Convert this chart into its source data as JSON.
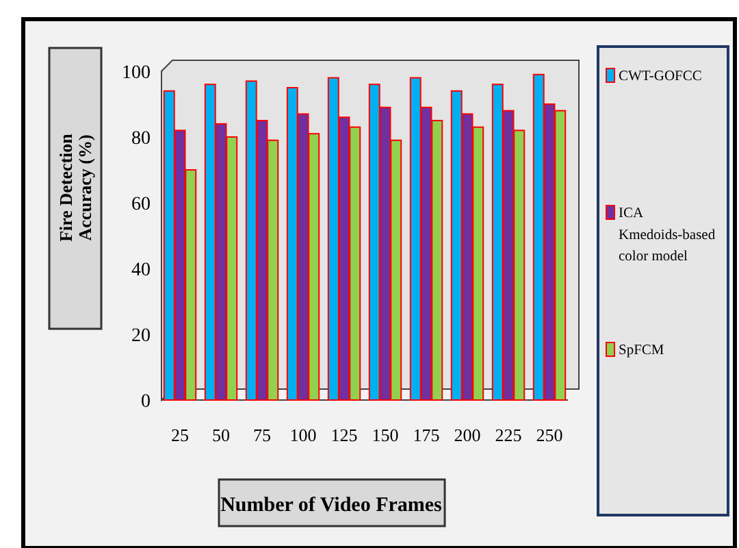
{
  "chart_data": {
    "type": "bar",
    "xlabel": "Number of Video Frames",
    "ylabel": "Fire Detection Accuracy (%)",
    "categories": [
      "25",
      "50",
      "75",
      "100",
      "125",
      "150",
      "175",
      "200",
      "225",
      "250"
    ],
    "series": [
      {
        "name": "CWT-GOFCC",
        "color": "#00b0f0",
        "values": [
          94,
          96,
          97,
          95,
          98,
          96,
          98,
          94,
          96,
          99
        ]
      },
      {
        "name": "ICA Kmedoids-based color model",
        "color": "#7030a0",
        "values": [
          82,
          84,
          85,
          87,
          86,
          89,
          89,
          87,
          88,
          90
        ]
      },
      {
        "name": "SpFCM",
        "color": "#92d050",
        "values": [
          70,
          80,
          79,
          81,
          83,
          79,
          85,
          83,
          82,
          88
        ]
      }
    ],
    "ylim": [
      0,
      100
    ],
    "yticks": [
      0,
      20,
      40,
      60,
      80,
      100
    ],
    "grid": false,
    "legend": "right"
  }
}
